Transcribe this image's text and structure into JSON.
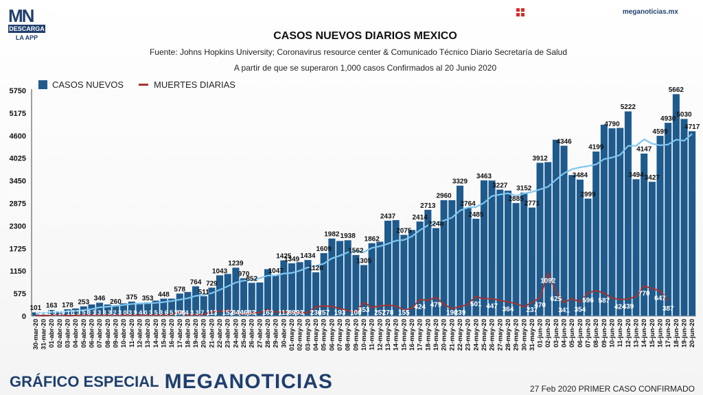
{
  "header": {
    "logo_main": "MN",
    "logo_band": "DESCARGA",
    "logo_sub": "LA APP",
    "site": "meganoticias.mx"
  },
  "footer": {
    "left_label": "GRÁFICO ESPECIAL",
    "brand": "MEGANOTICIAS",
    "right_note": "27 Feb 2020 PRIMER CASO CONFIRMADO"
  },
  "chart_data": {
    "type": "bar",
    "title": "CASOS NUEVOS DIARIOS MEXICO",
    "subtitle": "Fuente: Johns Hopkins University; Coronavirus resource center & Comunicado Técnico Diario Secretaría de Salud",
    "note": "A partir de que se superaron 1,000 casos Confirmados al 20 Junio 2020",
    "legend": [
      "CASOS NUEVOS",
      "MUERTES DIARIAS"
    ],
    "legend_position": "top-left",
    "ylim": [
      0,
      5750
    ],
    "yticks": [
      "0",
      "575",
      "1150",
      "1725",
      "2300",
      "2875",
      "3450",
      "4025",
      "4600",
      "5175",
      "5750"
    ],
    "grid": false,
    "colors": {
      "bars": "#1f5a8c",
      "deaths_line": "#a5322e",
      "trend_line": "#7fc6f0"
    },
    "categories": [
      "30-mar-20",
      "31-mar-20",
      "01-abr-20",
      "02-abr-20",
      "03-abr-20",
      "04-abr-20",
      "05-abr-20",
      "06-abr-20",
      "07-abr-20",
      "08-abr-20",
      "09-abr-20",
      "10-abr-20",
      "11-abr-20",
      "12-abr-20",
      "13-abr-20",
      "14-abr-20",
      "15-abr-20",
      "16-abr-20",
      "17-abr-20",
      "18-abr-20",
      "19-abr-20",
      "20-abr-20",
      "21-abr-20",
      "22-abr-20",
      "23-abr-20",
      "24-abr-20",
      "25-abr-20",
      "26-abr-20",
      "27-abr-20",
      "28-abr-20",
      "29-abr-20",
      "30-abr-20",
      "01-may-20",
      "02-may-20",
      "03-may-20",
      "04-may-20",
      "05-may-20",
      "06-may-20",
      "07-may-20",
      "08-may-20",
      "09-may-20",
      "10-may-20",
      "11-may-20",
      "12-may-20",
      "13-may-20",
      "14-may-20",
      "15-may-20",
      "16-may-20",
      "17-may-20",
      "18-may-20",
      "19-may-20",
      "20-may-20",
      "21-may-20",
      "22-may-20",
      "23-may-20",
      "24-may-20",
      "25-may-20",
      "26-may-20",
      "27-may-20",
      "28-may-20",
      "29-may-20",
      "30-may-20",
      "31-may-20",
      "01-jun-20",
      "02-jun-20",
      "03-jun-20",
      "04-jun-20",
      "05-jun-20",
      "06-jun-20",
      "07-jun-20",
      "08-jun-20",
      "09-jun-20",
      "10-jun-20",
      "11-jun-20",
      "12-jun-20",
      "13-jun-20",
      "14-jun-20",
      "15-jun-20",
      "16-jun-20",
      "17-jun-20",
      "18-jun-20",
      "19-jun-20",
      "20-jun-20"
    ],
    "series": [
      {
        "name": "CASOS NUEVOS",
        "type": "bar",
        "values": [
          101,
          50,
          163,
          120,
          178,
          200,
          253,
          300,
          346,
          300,
          260,
          330,
          375,
          340,
          353,
          400,
          448,
          450,
          578,
          620,
          764,
          511,
          729,
          1043,
          1080,
          1239,
          970,
          852,
          860,
          1200,
          1047,
          1425,
          1349,
          1380,
          1434,
          1120,
          1609,
          1982,
          1920,
          1938,
          1562,
          1305,
          1862,
          1900,
          2437,
          2450,
          2075,
          2200,
          2414,
          2713,
          2248,
          2960,
          2960,
          3329,
          2764,
          2485,
          3463,
          3460,
          3227,
          3200,
          2885,
          3152,
          2771,
          3912,
          3930,
          4500,
          4346,
          3600,
          3484,
          2999,
          4199,
          4883,
          4790,
          4800,
          5222,
          3494,
          4147,
          3427,
          4599,
          4930,
          5662,
          5030,
          4717
        ]
      },
      {
        "name": "MUERTES DIARIAS",
        "type": "line",
        "values": [
          20,
          8,
          28,
          40,
          10,
          20,
          34,
          30,
          30,
          30,
          30,
          30,
          30,
          30,
          30,
          30,
          30,
          40,
          104,
          35,
          38,
          38,
          113,
          120,
          152,
          84,
          46,
          83,
          90,
          163,
          100,
          113,
          89,
          93,
          90,
          236,
          257,
          250,
          193,
          140,
          108,
          353,
          220,
          257,
          278,
          260,
          155,
          200,
          424,
          400,
          479,
          300,
          190,
          239,
          300,
          501,
          440,
          447,
          400,
          364,
          320,
          237,
          350,
          470,
          1092,
          625,
          341,
          450,
          354,
          596,
          650,
          587,
          460,
          424,
          439,
          500,
          770,
          700,
          647,
          387,
          0,
          0,
          0
        ]
      }
    ],
    "bar_labels": [
      [
        "101",
        0
      ],
      [
        "163",
        2
      ],
      [
        "178",
        4
      ],
      [
        "253",
        6
      ],
      [
        "346",
        8
      ],
      [
        "260",
        10
      ],
      [
        "375",
        12
      ],
      [
        "353",
        14
      ],
      [
        "448",
        16
      ],
      [
        "578",
        18
      ],
      [
        "764",
        20
      ],
      [
        "511",
        21
      ],
      [
        "729",
        22
      ],
      [
        "1043",
        23
      ],
      [
        "1239",
        25
      ],
      [
        "970",
        26
      ],
      [
        "852",
        27
      ],
      [
        "1047",
        30
      ],
      [
        "1425",
        31
      ],
      [
        "1349",
        32
      ],
      [
        "1434",
        34
      ],
      [
        "1120",
        35
      ],
      [
        "1609",
        36
      ],
      [
        "1982",
        37
      ],
      [
        "1938",
        39
      ],
      [
        "1562",
        40
      ],
      [
        "1305",
        41
      ],
      [
        "1862",
        42
      ],
      [
        "2437",
        44
      ],
      [
        "2075",
        46
      ],
      [
        "2414",
        48
      ],
      [
        "2713",
        49
      ],
      [
        "2248",
        50
      ],
      [
        "2960",
        51
      ],
      [
        "3329",
        53
      ],
      [
        "2764",
        54
      ],
      [
        "2485",
        55
      ],
      [
        "3463",
        56
      ],
      [
        "3227",
        58
      ],
      [
        "2885",
        60
      ],
      [
        "3152",
        61
      ],
      [
        "2771",
        62
      ],
      [
        "3912",
        63
      ],
      [
        "4346",
        66
      ],
      [
        "3484",
        68
      ],
      [
        "2999",
        69
      ],
      [
        "4199",
        70
      ],
      [
        "4790",
        72
      ],
      [
        "5222",
        74
      ],
      [
        "3494",
        75
      ],
      [
        "4147",
        76
      ],
      [
        "3427",
        77
      ],
      [
        "4599",
        78
      ],
      [
        "4930",
        79
      ],
      [
        "5662",
        80
      ],
      [
        "5030",
        81
      ],
      [
        "4717",
        82
      ]
    ],
    "death_labels": [
      [
        "104",
        18
      ],
      [
        "113",
        22
      ],
      [
        "152",
        24
      ],
      [
        "84",
        25
      ],
      [
        "46",
        26
      ],
      [
        "83",
        27
      ],
      [
        "163",
        29
      ],
      [
        "113",
        31
      ],
      [
        "89",
        32
      ],
      [
        "93",
        33
      ],
      [
        "236",
        35
      ],
      [
        "257",
        36
      ],
      [
        "193",
        38
      ],
      [
        "108",
        40
      ],
      [
        "353",
        41
      ],
      [
        "257",
        43
      ],
      [
        "278",
        44
      ],
      [
        "155",
        46
      ],
      [
        "424",
        48
      ],
      [
        "479",
        50
      ],
      [
        "190",
        52
      ],
      [
        "239",
        53
      ],
      [
        "501",
        55
      ],
      [
        "447",
        57
      ],
      [
        "364",
        59
      ],
      [
        "237",
        62
      ],
      [
        "470",
        63
      ],
      [
        "1092",
        64
      ],
      [
        "625",
        65
      ],
      [
        "341",
        66
      ],
      [
        "354",
        68
      ],
      [
        "596",
        69
      ],
      [
        "587",
        71
      ],
      [
        "424",
        73
      ],
      [
        "439",
        74
      ],
      [
        "770",
        76
      ],
      [
        "647",
        78
      ],
      [
        "387",
        79
      ]
    ],
    "small_bar_labels_text": "81 21 3 10 1 1 3 5 3 1 3 3 3 2 3 0 3 9 4 0 3 5 3 6 5 7 4 4 3 3 7"
  }
}
